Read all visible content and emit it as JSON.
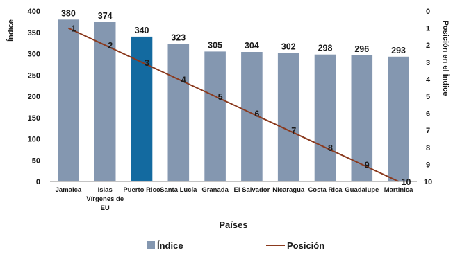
{
  "chart_data": {
    "type": "bar",
    "categories": [
      [
        "Jamaica"
      ],
      [
        "Islas",
        "Vírgenes de",
        "EU"
      ],
      [
        "Puerto Rico"
      ],
      [
        "Santa Lucía"
      ],
      [
        "Granada"
      ],
      [
        "El Salvador"
      ],
      [
        "Nicaragua"
      ],
      [
        "Costa Rica"
      ],
      [
        "Guadalupe"
      ],
      [
        "Martinica"
      ]
    ],
    "series": [
      {
        "name": "Índice",
        "type": "bar",
        "axis": "left",
        "values": [
          380,
          374,
          340,
          323,
          305,
          304,
          302,
          298,
          296,
          293
        ],
        "labels": [
          "380",
          "374",
          "340",
          "323",
          "305",
          "304",
          "302",
          "298",
          "296",
          "293"
        ]
      },
      {
        "name": "Posición",
        "type": "line",
        "axis": "right",
        "values": [
          1,
          2,
          3,
          4,
          5,
          6,
          7,
          8,
          9,
          10
        ],
        "labels": [
          "1",
          "2",
          "3",
          "4",
          "5",
          "6",
          "7",
          "8",
          "9",
          "10"
        ]
      }
    ],
    "highlight_index": 2,
    "xlabel": "Países",
    "ylabel": "Índice",
    "y2label": "Posición en el Índice",
    "ylim": [
      0,
      400
    ],
    "yticks": [
      "0",
      "50",
      "100",
      "150",
      "200",
      "250",
      "300",
      "350",
      "400"
    ],
    "y2lim": [
      0,
      10
    ],
    "y2_inverted": true,
    "y2ticks": [
      "0",
      "1",
      "2",
      "3",
      "4",
      "5",
      "6",
      "7",
      "8",
      "9",
      "10"
    ],
    "grid": false,
    "legend_position": "bottom",
    "colors": {
      "bar": "#8497b0",
      "bar_highlight": "#136aa0",
      "line": "#8b3a1e",
      "text": "#1a1a1a"
    }
  }
}
